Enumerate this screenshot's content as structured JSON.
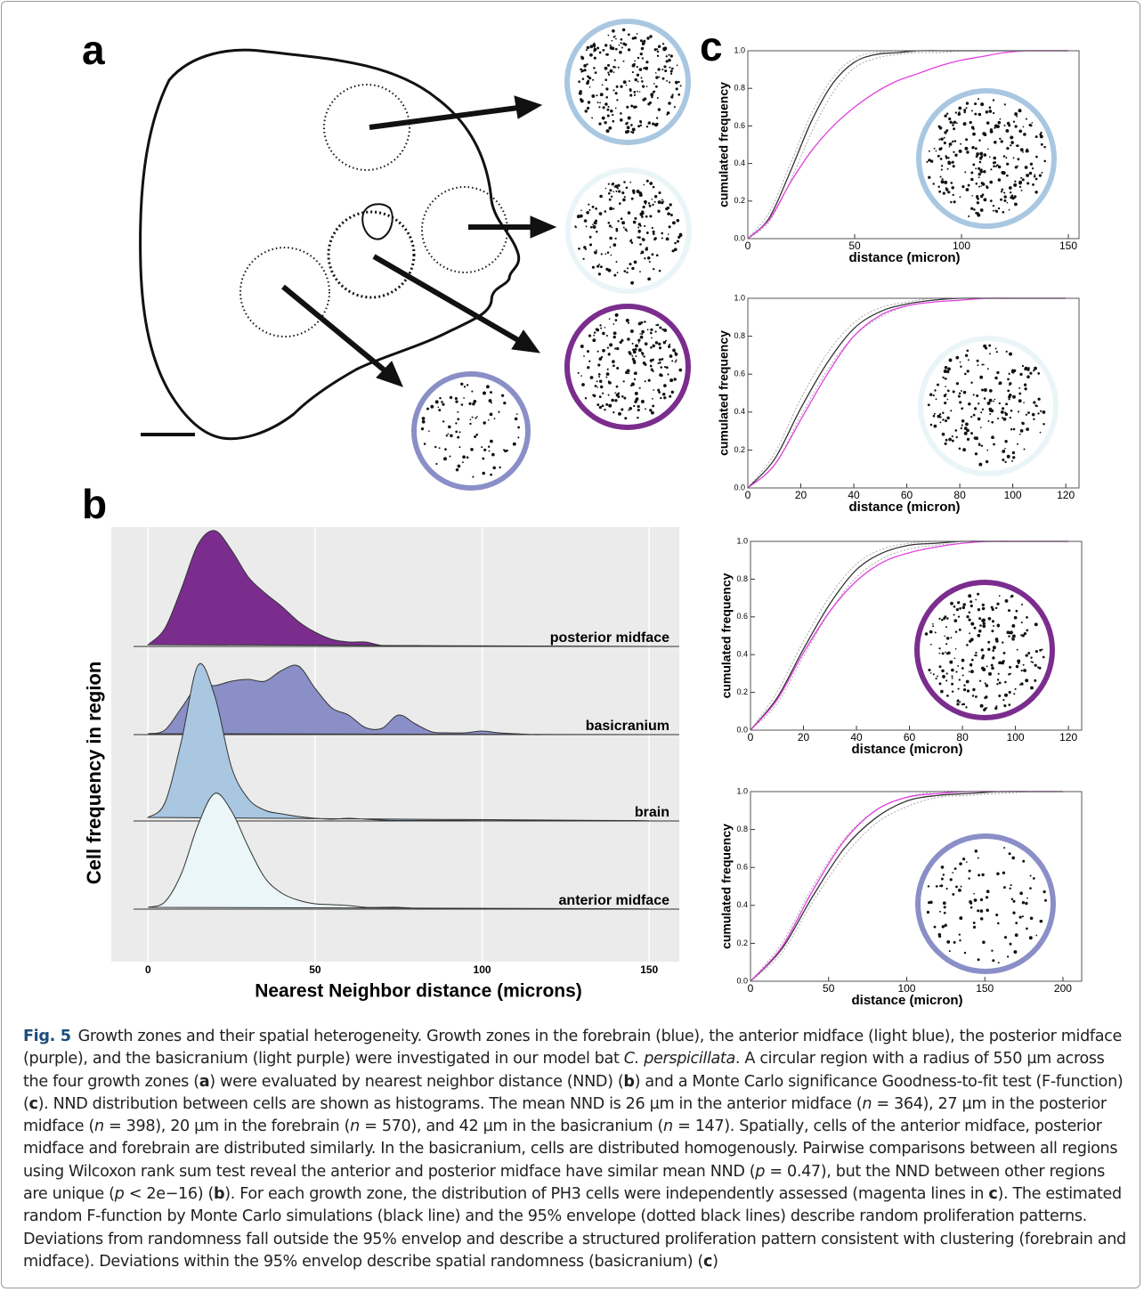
{
  "panel_labels": {
    "a": "a",
    "b": "b",
    "c": "c"
  },
  "chart_data": [
    {
      "type": "ridgeline",
      "x_label": "Nearest Neighbor distance (microns)",
      "y_label": "Cell frequency in region",
      "x": [
        0,
        5,
        10,
        15,
        20,
        25,
        30,
        35,
        40,
        45,
        50,
        55,
        60,
        65,
        70,
        75,
        80,
        85,
        90,
        95,
        100,
        105,
        110,
        115,
        120,
        125,
        130,
        135,
        140,
        145,
        150
      ],
      "xlim": [
        -11,
        159
      ],
      "xticks": [
        0,
        50,
        100,
        150
      ],
      "grid": true,
      "series": [
        {
          "name": "posterior midface",
          "color": "#7b2d8e",
          "values": [
            0.02,
            0.2,
            0.65,
            1.15,
            1.3,
            1.08,
            0.78,
            0.6,
            0.45,
            0.28,
            0.16,
            0.08,
            0.05,
            0.05,
            0.01,
            0.005,
            0.01,
            0.002,
            0.002,
            0.005,
            0.002,
            0,
            0,
            0,
            0,
            0,
            0,
            0,
            0,
            0,
            0
          ]
        },
        {
          "name": "basicranium",
          "color": "#8a8fc7",
          "values": [
            0.01,
            0.05,
            0.3,
            0.55,
            0.55,
            0.6,
            0.62,
            0.6,
            0.72,
            0.77,
            0.52,
            0.3,
            0.22,
            0.08,
            0.07,
            0.22,
            0.12,
            0.03,
            0.02,
            0.02,
            0.04,
            0.02,
            0.01,
            0,
            0,
            0,
            0,
            0,
            0,
            0,
            0
          ]
        },
        {
          "name": "brain",
          "color": "#a9c7e1",
          "values": [
            0.04,
            0.2,
            0.9,
            1.75,
            1.4,
            0.6,
            0.25,
            0.12,
            0.08,
            0.05,
            0.03,
            0.02,
            0.03,
            0.02,
            0.01,
            0.005,
            0.005,
            0.005,
            0.005,
            0.005,
            0.003,
            0.002,
            0.002,
            0.002,
            0.002,
            0.002,
            0.002,
            0.002,
            0.002,
            0.005,
            0.002
          ]
        },
        {
          "name": "anterior midface",
          "color": "#eaf6f8",
          "values": [
            0.02,
            0.08,
            0.4,
            0.95,
            1.3,
            1.1,
            0.7,
            0.35,
            0.18,
            0.1,
            0.06,
            0.05,
            0.04,
            0.02,
            0.02,
            0.02,
            0.01,
            0.005,
            0.005,
            0.005,
            0.005,
            0.003,
            0.003,
            0.003,
            0.003,
            0.003,
            0.003,
            0.003,
            0.003,
            0.003,
            0.003
          ]
        }
      ]
    },
    {
      "type": "line",
      "x_label": "distance (micron)",
      "y_label": "cumulated frequency",
      "x": [
        0,
        10,
        20,
        30,
        40,
        50,
        60,
        70,
        80,
        90,
        100,
        110,
        120,
        130,
        140,
        150
      ],
      "xlim": [
        0,
        155
      ],
      "ylim": [
        0,
        1
      ],
      "xticks": [
        0,
        50,
        100,
        150
      ],
      "yticks": [
        {
          "value": 0,
          "label": "0.0"
        },
        0.2,
        0.4,
        0.6,
        0.8,
        {
          "value": 1,
          "label": "1.0"
        }
      ],
      "series": [
        {
          "color": "#aaaaaa",
          "linestyle": "dotted",
          "values": [
            0,
            0.14,
            0.4,
            0.67,
            0.86,
            0.96,
            0.99,
            1,
            1,
            1,
            1,
            1,
            1,
            1,
            1,
            1
          ]
        },
        {
          "color": "#aaaaaa",
          "linestyle": "dotted",
          "values": [
            0,
            0.09,
            0.31,
            0.57,
            0.78,
            0.91,
            0.96,
            0.98,
            0.99,
            0.99,
            1,
            1,
            1,
            1,
            1,
            1
          ]
        },
        {
          "color": "#333333",
          "linestyle": "solid",
          "values": [
            0,
            0.11,
            0.36,
            0.63,
            0.83,
            0.94,
            0.98,
            0.99,
            1,
            1,
            1,
            1,
            1,
            1,
            1,
            1
          ]
        },
        {
          "color": "#e040e0",
          "linestyle": "solid",
          "values": [
            0,
            0.1,
            0.3,
            0.47,
            0.6,
            0.7,
            0.78,
            0.84,
            0.88,
            0.92,
            0.95,
            0.97,
            0.99,
            1,
            1,
            1
          ]
        }
      ]
    },
    {
      "type": "line",
      "x_label": "distance (micron)",
      "y_label": "cumulated frequency",
      "x": [
        0,
        10,
        20,
        30,
        40,
        50,
        60,
        70,
        80,
        90,
        100,
        110,
        120
      ],
      "xlim": [
        0,
        125
      ],
      "ylim": [
        0,
        1
      ],
      "xticks": [
        0,
        20,
        40,
        60,
        80,
        100,
        120
      ],
      "yticks": [
        {
          "value": 0,
          "label": "0.0"
        },
        0.2,
        0.4,
        0.6,
        0.8,
        {
          "value": 1,
          "label": "1.0"
        }
      ],
      "series": [
        {
          "color": "#aaaaaa",
          "linestyle": "dotted",
          "values": [
            0,
            0.18,
            0.47,
            0.71,
            0.87,
            0.95,
            0.98,
            1,
            1,
            1,
            1,
            1,
            1
          ]
        },
        {
          "color": "#aaaaaa",
          "linestyle": "dotted",
          "values": [
            0,
            0.12,
            0.38,
            0.62,
            0.8,
            0.9,
            0.96,
            0.98,
            0.99,
            1,
            1,
            1,
            1
          ]
        },
        {
          "color": "#333333",
          "linestyle": "solid",
          "values": [
            0,
            0.15,
            0.42,
            0.66,
            0.84,
            0.93,
            0.97,
            0.99,
            1,
            1,
            1,
            1,
            1
          ]
        },
        {
          "color": "#e040e0",
          "linestyle": "solid",
          "values": [
            0,
            0.12,
            0.36,
            0.6,
            0.8,
            0.91,
            0.96,
            0.98,
            0.99,
            1,
            1,
            1,
            1
          ]
        }
      ]
    },
    {
      "type": "line",
      "x_label": "distance (micron)",
      "y_label": "cumulated frequency",
      "x": [
        0,
        10,
        20,
        30,
        40,
        50,
        60,
        70,
        80,
        90,
        100,
        110,
        120
      ],
      "xlim": [
        0,
        125
      ],
      "ylim": [
        0,
        1
      ],
      "xticks": [
        0,
        20,
        40,
        60,
        80,
        100,
        120
      ],
      "yticks": [
        {
          "value": 0,
          "label": "0.0"
        },
        0.2,
        0.4,
        0.6,
        0.8,
        {
          "value": 1,
          "label": "1.0"
        }
      ],
      "series": [
        {
          "color": "#aaaaaa",
          "linestyle": "dotted",
          "values": [
            0,
            0.2,
            0.47,
            0.71,
            0.88,
            0.96,
            0.99,
            1,
            1,
            1,
            1,
            1,
            1
          ]
        },
        {
          "color": "#aaaaaa",
          "linestyle": "dotted",
          "values": [
            0,
            0.14,
            0.39,
            0.63,
            0.81,
            0.91,
            0.96,
            0.98,
            0.99,
            1,
            1,
            1,
            1
          ]
        },
        {
          "color": "#333333",
          "linestyle": "solid",
          "values": [
            0,
            0.17,
            0.43,
            0.67,
            0.85,
            0.94,
            0.98,
            0.99,
            1,
            1,
            1,
            1,
            1
          ]
        },
        {
          "color": "#e040e0",
          "linestyle": "solid",
          "values": [
            0,
            0.16,
            0.41,
            0.63,
            0.79,
            0.89,
            0.94,
            0.97,
            0.99,
            1,
            1,
            1,
            1
          ]
        }
      ]
    },
    {
      "type": "line",
      "x_label": "distance (micron)",
      "y_label": "cumulated frequency",
      "x": [
        0,
        20,
        40,
        60,
        80,
        100,
        120,
        140,
        160,
        180,
        200
      ],
      "xlim": [
        0,
        212
      ],
      "ylim": [
        0,
        1
      ],
      "xticks": [
        0,
        50,
        100,
        150,
        200
      ],
      "yticks": [
        {
          "value": 0,
          "label": "0.0"
        },
        0.2,
        0.4,
        0.6,
        0.8,
        {
          "value": 1,
          "label": "1.0"
        }
      ],
      "series": [
        {
          "color": "#aaaaaa",
          "linestyle": "dotted",
          "values": [
            0,
            0.2,
            0.5,
            0.75,
            0.9,
            0.97,
            1,
            1,
            1,
            1,
            1
          ]
        },
        {
          "color": "#aaaaaa",
          "linestyle": "dotted",
          "values": [
            0,
            0.15,
            0.42,
            0.66,
            0.83,
            0.92,
            0.97,
            0.98,
            0.99,
            1,
            1
          ]
        },
        {
          "color": "#333333",
          "linestyle": "solid",
          "values": [
            0,
            0.17,
            0.45,
            0.7,
            0.86,
            0.95,
            0.98,
            0.99,
            1,
            1,
            1
          ]
        },
        {
          "color": "#e040e0",
          "linestyle": "solid",
          "values": [
            0,
            0.18,
            0.48,
            0.74,
            0.9,
            0.97,
            0.99,
            1,
            1,
            1,
            1
          ]
        }
      ]
    }
  ],
  "caption": {
    "label": "Fig. 5",
    "segments": [
      {
        "text": "Growth zones and their spatial heterogeneity. Growth zones in the forebrain (blue), the anterior midface (light blue), the posterior midface (purple), and the basicranium (light purple) were investigated in our model bat ",
        "style": "normal"
      },
      {
        "text": "C. perspicillata",
        "style": "italic"
      },
      {
        "text": ". A circular region with a radius of 550 µm across the four growth zones (",
        "style": "normal"
      },
      {
        "text": "a",
        "style": "bold"
      },
      {
        "text": ") were evaluated by nearest neighbor distance (NND) (",
        "style": "normal"
      },
      {
        "text": "b",
        "style": "bold"
      },
      {
        "text": ") and a Monte Carlo significance Goodness-to-fit test (F-function) (",
        "style": "normal"
      },
      {
        "text": "c",
        "style": "bold"
      },
      {
        "text": "). NND distribution between cells are shown as histograms. The mean NND is 26 µm in the anterior midface (",
        "style": "normal"
      },
      {
        "text": "n",
        "style": "italic"
      },
      {
        "text": " = 364), 27 µm in the posterior midface (",
        "style": "normal"
      },
      {
        "text": "n",
        "style": "italic"
      },
      {
        "text": " = 398), 20 µm in the forebrain (",
        "style": "normal"
      },
      {
        "text": "n",
        "style": "italic"
      },
      {
        "text": " = 570), and 42 µm in the basicranium (",
        "style": "normal"
      },
      {
        "text": "n",
        "style": "italic"
      },
      {
        "text": " = 147). Spatially, cells of the anterior midface, posterior midface and forebrain are distributed similarly. In the basicranium, cells are distributed homogenously. Pairwise comparisons between all regions using Wilcoxon rank sum test reveal the anterior and posterior midface have similar mean NND (",
        "style": "normal"
      },
      {
        "text": "p",
        "style": "italic"
      },
      {
        "text": " = 0.47), but the NND between other regions are unique (",
        "style": "normal"
      },
      {
        "text": "p",
        "style": "italic"
      },
      {
        "text": " < 2e−16) (",
        "style": "normal"
      },
      {
        "text": "b",
        "style": "bold"
      },
      {
        "text": "). For each growth zone, the distribution of PH3 cells were independently assessed (magenta lines in ",
        "style": "normal"
      },
      {
        "text": "c",
        "style": "bold"
      },
      {
        "text": "). The estimated random F-function by Monte Carlo simulations (black line) and the 95% envelope (dotted black lines) describe random proliferation patterns. Deviations from randomness fall outside the 95% envelop and describe a structured proliferation pattern consistent with clustering (forebrain and midface). Deviations within the 95% envelop describe spatial randomness (basicranium) (",
        "style": "normal"
      },
      {
        "text": "c",
        "style": "bold"
      },
      {
        "text": ")",
        "style": "normal"
      }
    ]
  }
}
